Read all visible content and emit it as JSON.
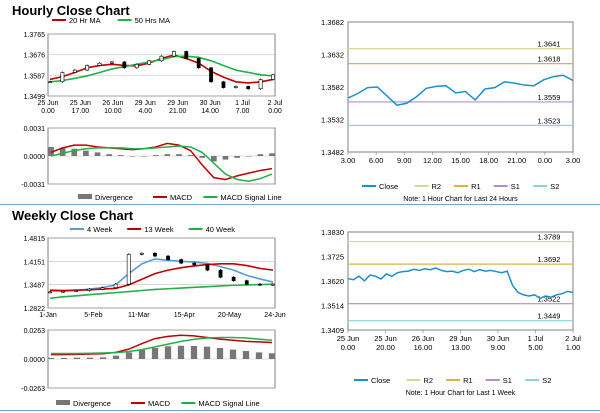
{
  "page": {
    "sections": [
      {
        "title": "Hourly Close Chart"
      },
      {
        "title": "Weekly Close Chart"
      }
    ]
  },
  "colors": {
    "ma_short": "#c00000",
    "ma_long": "#22b04a",
    "wk4": "#5b9bd5",
    "wk13": "#c00000",
    "wk40": "#22b04a",
    "close": "#1f8fc9",
    "r2": "#d8d69a",
    "r1": "#d9b34a",
    "s1": "#b48fc7",
    "s2": "#8ed3dc",
    "divergence": "#777777",
    "macd": "#c00000",
    "macd_signal": "#22b04a",
    "price": "#000000",
    "grid": "#bfbfbf"
  },
  "chart_data": [
    {
      "id": "hourly-price",
      "type": "line",
      "legend": [
        "20 Hr MA",
        "50 Hrs MA"
      ],
      "y_ticks": [
        "1.3765",
        "1.3676",
        "1.3587",
        "1.3499"
      ],
      "x_ticks": [
        [
          "25 Jun",
          "0.00"
        ],
        [
          "25 Jun",
          "17.00"
        ],
        [
          "26 Jun",
          "10.00"
        ],
        [
          "29 Jun",
          "4.00"
        ],
        [
          "29 Jun",
          "21.00"
        ],
        [
          "30 Jun",
          "14.00"
        ],
        [
          "1 Jul",
          "7.00"
        ],
        [
          "2 Jul",
          "0.00"
        ]
      ],
      "ylim": [
        1.3499,
        1.3765
      ],
      "series": [
        {
          "name": "20 Hr MA",
          "values": [
            1.357,
            1.3582,
            1.36,
            1.362,
            1.363,
            1.3635,
            1.363,
            1.3628,
            1.364,
            1.366,
            1.3675,
            1.366,
            1.364,
            1.3605,
            1.358,
            1.356,
            1.3555,
            1.356,
            1.357
          ]
        },
        {
          "name": "50 Hrs MA",
          "values": [
            1.356,
            1.3565,
            1.3575,
            1.3585,
            1.36,
            1.3615,
            1.3625,
            1.3635,
            1.3645,
            1.3655,
            1.3668,
            1.367,
            1.3665,
            1.365,
            1.363,
            1.361,
            1.36,
            1.359,
            1.3585
          ]
        },
        {
          "name": "Price",
          "values": [
            1.356,
            1.36,
            1.361,
            1.363,
            1.364,
            1.3645,
            1.362,
            1.3635,
            1.365,
            1.367,
            1.369,
            1.366,
            1.362,
            1.356,
            1.3535,
            1.354,
            1.353,
            1.357,
            1.359
          ]
        }
      ]
    },
    {
      "id": "hourly-macd",
      "type": "line",
      "y_ticks": [
        "0.0031",
        "0.0000",
        "-0.0031"
      ],
      "ylim": [
        -0.0031,
        0.0031
      ],
      "legend": [
        "Divergence",
        "MACD",
        "MACD Signal Line"
      ],
      "series": [
        {
          "name": "Divergence",
          "values": [
            0.001,
            0.0009,
            0.0008,
            0.0006,
            0.0004,
            0.0002,
            0.0001,
            0.0,
            0.0,
            0.0001,
            0.0002,
            0.0002,
            0.0001,
            -0.0002,
            -0.0006,
            -0.0004,
            -0.0002,
            0.0,
            0.0002,
            0.0003
          ]
        },
        {
          "name": "MACD",
          "values": [
            0.0004,
            0.0009,
            0.0012,
            0.0012,
            0.001,
            0.0009,
            0.0008,
            0.0007,
            0.0008,
            0.001,
            0.0014,
            0.0012,
            0.0006,
            -0.001,
            -0.0024,
            -0.0026,
            -0.0022,
            -0.0019,
            -0.0016,
            -0.0014
          ]
        },
        {
          "name": "MACD Signal Line",
          "values": [
            0.0,
            0.0003,
            0.0006,
            0.0008,
            0.0009,
            0.0009,
            0.0009,
            0.0008,
            0.0008,
            0.0009,
            0.001,
            0.0011,
            0.001,
            0.0004,
            -0.0008,
            -0.002,
            -0.0026,
            -0.0028,
            -0.0025,
            -0.002
          ]
        }
      ]
    },
    {
      "id": "hourly-pivot",
      "type": "line",
      "y_ticks": [
        "1.3682",
        "1.3632",
        "1.3582",
        "1.3532",
        "1.3482"
      ],
      "x_ticks": [
        "3.00",
        "6.00",
        "9.00",
        "12.00",
        "15.00",
        "18.00",
        "21.00",
        "0.00",
        "3.00"
      ],
      "ylim": [
        1.3482,
        1.3682
      ],
      "levels": [
        {
          "name": "R2",
          "value": 1.3641,
          "label": "1.3641"
        },
        {
          "name": "R1",
          "value": 1.3618,
          "label": "1.3618"
        },
        {
          "name": "S1",
          "value": 1.3559,
          "label": "1.3559"
        },
        {
          "name": "S2",
          "value": 1.3523,
          "label": "1.3523"
        }
      ],
      "series": [
        {
          "name": "Close",
          "values": [
            1.3565,
            1.3572,
            1.3581,
            1.3582,
            1.3568,
            1.3554,
            1.3557,
            1.3567,
            1.358,
            1.3583,
            1.3584,
            1.3573,
            1.3575,
            1.3562,
            1.3579,
            1.3581,
            1.359,
            1.3588,
            1.3585,
            1.3584,
            1.3593,
            1.3598,
            1.36,
            1.3592
          ]
        }
      ],
      "legend": [
        "Close",
        "R2",
        "R1",
        "S1",
        "S2"
      ],
      "note": "Note: 1 Hour Chart for Last 24 Hours"
    },
    {
      "id": "weekly-price",
      "type": "line",
      "legend": [
        "4 Week",
        "13 Week",
        "40 Week"
      ],
      "y_ticks": [
        "1.4815",
        "1.4151",
        "1.3487",
        "1.2822"
      ],
      "x_ticks": [
        "1-Jan",
        "5-Feb",
        "11-Mar",
        "15-Apr",
        "20-May",
        "24-Jun"
      ],
      "ylim": [
        1.2822,
        1.4815
      ],
      "series": [
        {
          "name": "4 Week",
          "values": [
            1.331,
            1.33,
            1.332,
            1.336,
            1.34,
            1.348,
            1.38,
            1.408,
            1.422,
            1.418,
            1.415,
            1.413,
            1.409,
            1.4,
            1.39,
            1.375,
            1.365,
            1.356
          ]
        },
        {
          "name": "13 Week",
          "values": [
            1.333,
            1.332,
            1.333,
            1.334,
            1.336,
            1.338,
            1.348,
            1.364,
            1.38,
            1.39,
            1.397,
            1.402,
            1.406,
            1.408,
            1.408,
            1.403,
            1.395,
            1.39
          ]
        },
        {
          "name": "40 Week",
          "values": [
            1.31,
            1.314,
            1.317,
            1.32,
            1.323,
            1.326,
            1.329,
            1.332,
            1.335,
            1.337,
            1.339,
            1.341,
            1.343,
            1.345,
            1.347,
            1.348,
            1.349,
            1.35
          ]
        },
        {
          "name": "Price",
          "values": [
            1.328,
            1.33,
            1.332,
            1.336,
            1.34,
            1.35,
            1.435,
            1.438,
            1.43,
            1.42,
            1.41,
            1.405,
            1.39,
            1.37,
            1.36,
            1.35,
            1.348,
            1.35
          ]
        }
      ]
    },
    {
      "id": "weekly-macd",
      "type": "line",
      "y_ticks": [
        "0.0263",
        "0.0000",
        "-0.0263"
      ],
      "ylim": [
        -0.0263,
        0.0263
      ],
      "legend": [
        "Divergence",
        "MACD",
        "MACD Signal Line"
      ],
      "series": [
        {
          "name": "Divergence",
          "values": [
            0.001,
            0.001,
            0.0012,
            0.0012,
            0.0015,
            0.003,
            0.006,
            0.0085,
            0.01,
            0.0115,
            0.012,
            0.0118,
            0.0112,
            0.01,
            0.0085,
            0.0072,
            0.006,
            0.0052
          ]
        },
        {
          "name": "MACD",
          "values": [
            0.004,
            0.004,
            0.0042,
            0.0045,
            0.0048,
            0.006,
            0.009,
            0.014,
            0.0185,
            0.0205,
            0.0215,
            0.021,
            0.0195,
            0.018,
            0.017,
            0.016,
            0.0155,
            0.015
          ]
        },
        {
          "name": "MACD Signal Line",
          "values": [
            0.005,
            0.005,
            0.005,
            0.0052,
            0.0054,
            0.0058,
            0.0068,
            0.0085,
            0.011,
            0.0135,
            0.016,
            0.0178,
            0.019,
            0.0195,
            0.0195,
            0.019,
            0.018,
            0.017
          ]
        }
      ]
    },
    {
      "id": "weekly-pivot",
      "type": "line",
      "y_ticks": [
        "1.3830",
        "1.3725",
        "1.3620",
        "1.3514",
        "1.3409"
      ],
      "x_ticks": [
        [
          "25 Jun",
          "0.00"
        ],
        [
          "25 Jun",
          "20.00"
        ],
        [
          "26 Jun",
          "16.00"
        ],
        [
          "29 Jun",
          "13.00"
        ],
        [
          "30 Jun",
          "9.00"
        ],
        [
          "1 Jul",
          "5.00"
        ],
        [
          "2 Jul",
          "1.00"
        ]
      ],
      "ylim": [
        1.3409,
        1.383
      ],
      "levels": [
        {
          "name": "R2",
          "value": 1.3789,
          "label": "1.3789"
        },
        {
          "name": "R1",
          "value": 1.3692,
          "label": "1.3692"
        },
        {
          "name": "S1",
          "value": 1.3522,
          "label": "1.3522"
        },
        {
          "name": "S2",
          "value": 1.3449,
          "label": "1.3449"
        }
      ],
      "series": [
        {
          "name": "Close",
          "values": [
            1.363,
            1.3625,
            1.364,
            1.362,
            1.3645,
            1.364,
            1.3628,
            1.365,
            1.364,
            1.3655,
            1.366,
            1.3662,
            1.367,
            1.3665,
            1.3672,
            1.3668,
            1.3675,
            1.3665,
            1.366,
            1.3662,
            1.3655,
            1.3665,
            1.367,
            1.366,
            1.3668,
            1.3662,
            1.3665,
            1.366,
            1.3655,
            1.3662,
            1.36,
            1.357,
            1.356,
            1.3555,
            1.356,
            1.3545,
            1.3555,
            1.355,
            1.356,
            1.3565,
            1.3575,
            1.357
          ]
        }
      ],
      "legend": [
        "Close",
        "R2",
        "R1",
        "S1",
        "S2"
      ],
      "note": "Note: 1 Hour Chart for  Last 1 Week"
    }
  ]
}
